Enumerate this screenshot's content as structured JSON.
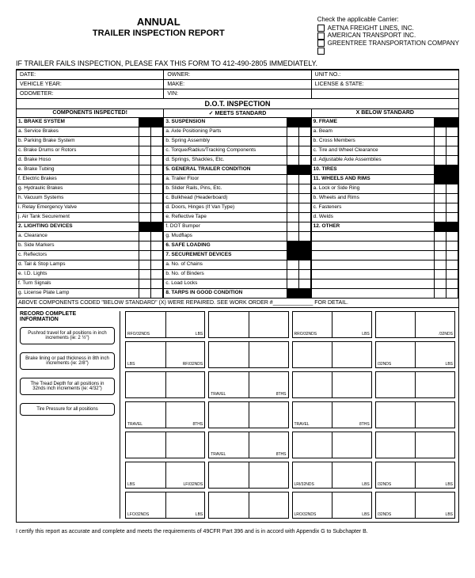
{
  "title": "ANNUAL",
  "subtitle": "TRAILER INSPECTION REPORT",
  "fax_line": "IF TRAILER FAILS INSPECTION, PLEASE FAX THIS FORM TO 412-490-2805 IMMEDIATELY.",
  "carrier_head": "Check the applicable Carrier:",
  "carriers": [
    "AETNA FREIGHT LINES, INC.",
    "AMERICAN TRANSPORT INC.",
    "GREENTREE TRANSPORTATION COMPANY",
    ""
  ],
  "info": [
    [
      "DATE:",
      "OWNER:",
      "UNIT NO.:"
    ],
    [
      "VEHICLE YEAR:",
      "MAKE:",
      "LICENSE & STATE:"
    ],
    [
      "ODOMETER:",
      "VIN:",
      ""
    ]
  ],
  "dot_head": "D.O.T. INSPECTION",
  "legend": [
    "COMPONENTS INSPECTED!",
    "✓ MEETS STANDARD",
    "X BELOW STANDARD"
  ],
  "col1": [
    {
      "t": "1. BRAKE SYSTEM",
      "c": 1,
      "b": 1
    },
    {
      "t": "a. Service Brakes"
    },
    {
      "t": "b. Parking Brake System"
    },
    {
      "t": "c. Brake Drums or Rotors"
    },
    {
      "t": "d. Brake Hoso"
    },
    {
      "t": "e. Brake Tubing"
    },
    {
      "t": "f. Electric Brakes"
    },
    {
      "t": "g. Hydraulic Brakes"
    },
    {
      "t": "h. Vacuum Systems"
    },
    {
      "t": "i. Relay Emergency Valve"
    },
    {
      "t": "j. Air Tank Securement"
    },
    {
      "t": "2. LIGHTING DEVICES",
      "c": 1,
      "b": 1
    },
    {
      "t": "a. Clearance"
    },
    {
      "t": "b. Side Markers"
    },
    {
      "t": "c. Reflectors"
    },
    {
      "t": "d. Tail & Stop Lamps"
    },
    {
      "t": "e. I.D. Lights"
    },
    {
      "t": "f. Turn Signals"
    },
    {
      "t": "g. License Plate Lamp"
    }
  ],
  "col2": [
    {
      "t": "3. SUSPENSION",
      "c": 1,
      "b": 1
    },
    {
      "t": "a. Axle Positioning Parts"
    },
    {
      "t": "b. Spring Assembly"
    },
    {
      "t": "c. Torque/Radius/Tracking Components"
    },
    {
      "t": "d. Springs, Shackles, Etc."
    },
    {
      "t": "5. GENERAL TRAILER CONDITION",
      "c": 1,
      "b": 1
    },
    {
      "t": "a. Trailer Floor"
    },
    {
      "t": "b. Slider Rails, Pins, Etc."
    },
    {
      "t": "c. Bulkhead (Headerboard)"
    },
    {
      "t": "d. Doors, Hinges (If Van Type)"
    },
    {
      "t": "e. Reflective Tape"
    },
    {
      "t": "f. DOT Bumper"
    },
    {
      "t": "g. Mudflaps"
    },
    {
      "t": "6. SAFE LOADING",
      "c": 1,
      "b": 1
    },
    {
      "t": "7. SECUREMENT DEVICES",
      "c": 1,
      "b": 1
    },
    {
      "t": "a. No. of Chains"
    },
    {
      "t": "b. No. of Binders"
    },
    {
      "t": "c. Load Locks"
    },
    {
      "t": "8. TARPS IN GOOD CONDITION",
      "c": 1,
      "b": 1
    }
  ],
  "col3": [
    {
      "t": "9. FRAME",
      "c": 1,
      "b": 1
    },
    {
      "t": "a. Beam"
    },
    {
      "t": "b. Cross Members"
    },
    {
      "t": "c. Tire and Wheel Clearance"
    },
    {
      "t": "d. Adjustable Axle Assemblies"
    },
    {
      "t": "10. TIRES",
      "c": 1,
      "b": 1
    },
    {
      "t": "11. WHEELS AND RIMS",
      "c": 1,
      "b": 1
    },
    {
      "t": "a. Lock or Side Ring"
    },
    {
      "t": "b. Wheels and Rims"
    },
    {
      "t": "c. Fasteners"
    },
    {
      "t": "d. Welds"
    },
    {
      "t": "12. OTHER",
      "c": 1,
      "b": 1
    },
    {
      "t": ""
    },
    {
      "t": ""
    },
    {
      "t": ""
    },
    {
      "t": ""
    },
    {
      "t": ""
    },
    {
      "t": ""
    },
    {
      "t": ""
    }
  ],
  "repair_note": "ABOVE COMPONENTS CODED \"BELOW STANDARD\" (X) WERE REPAIRED. SEE WORK ORDER #_____________ FOR DETAIL.",
  "record_head": "RECORD COMPLETE INFORMATION",
  "left_labels": [
    "Pushrod travel for all positions in inch increments (ie: 2 ½\")",
    "Brake lining or pad thickness in 8th inch increments (ie: 2/8\")",
    "The Tread Depth for all positions in 32nds inch increments (ie: 4/32\")",
    "Tire Pressure for all positions"
  ],
  "meas": [
    {
      "l": "RFO/32NDS",
      "r": "LBS"
    },
    {
      "l": "",
      "r": ""
    },
    {
      "l": "RRO/32NDS",
      "r": "LBS"
    },
    {
      "l": "",
      "r": "/32NDS"
    },
    {
      "l": "LBS",
      "r": "RFI/32NDS"
    },
    {
      "l": "",
      "r": ""
    },
    {
      "l": "",
      "r": ""
    },
    {
      "l": "/32NDS",
      "r": "LBS"
    },
    {
      "l": "",
      "r": ""
    },
    {
      "l": "TRAVEL",
      "r": "8THS"
    },
    {
      "l": "",
      "r": ""
    },
    {
      "l": "",
      "r": ""
    },
    {
      "l": "TRAVEL",
      "r": "8THS"
    },
    {
      "l": "",
      "r": ""
    },
    {
      "l": "TRAVEL",
      "r": "8THS"
    },
    {
      "l": "",
      "r": ""
    },
    {
      "l": "",
      "r": ""
    },
    {
      "l": "TRAVEL",
      "r": "8THS"
    },
    {
      "l": "",
      "r": ""
    },
    {
      "l": "",
      "r": ""
    },
    {
      "l": "LBS",
      "r": "LFI/32NDS"
    },
    {
      "l": "",
      "r": ""
    },
    {
      "l": "LRI/32NDS",
      "r": "LBS"
    },
    {
      "l": "/32NDS",
      "r": "LBS"
    },
    {
      "l": "LFO/32NDS",
      "r": "LBS"
    },
    {
      "l": "",
      "r": ""
    },
    {
      "l": "LRO/32NDS",
      "r": "LBS"
    },
    {
      "l": "/32NDS",
      "r": "LBS"
    }
  ],
  "cert": "I certify this report as accurate and complete and meets the requirements of 49CFR Part 396 and is in accord with Appendix G to Subchapter B."
}
